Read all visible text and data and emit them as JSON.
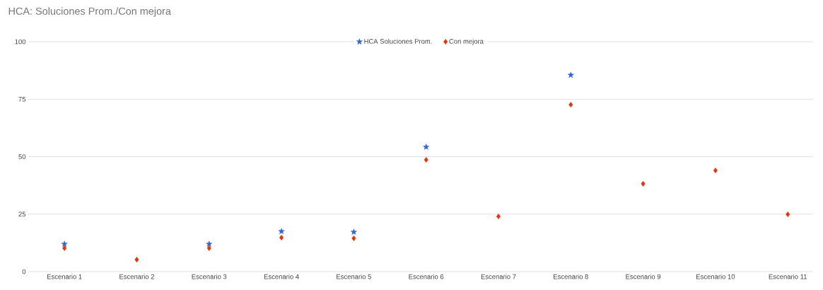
{
  "chart_data": {
    "type": "scatter",
    "title": "HCA: Soluciones Prom./Con mejora",
    "categories": [
      "Escenario 1",
      "Escenario 2",
      "Escenario 3",
      "Escenario 4",
      "Escenario 5",
      "Escenario 6",
      "Escenario 7",
      "Escenario 8",
      "Escenario 9",
      "Escenario 10",
      "Escenario 11"
    ],
    "series": [
      {
        "name": "HCA Soluciones Prom.",
        "color": "#3366cc",
        "marker": "star",
        "values": [
          12,
          null,
          12,
          17.5,
          17.2,
          54.2,
          null,
          85.5,
          null,
          null,
          null
        ]
      },
      {
        "name": "Con mejora",
        "color": "#dc3912",
        "marker": "diamond",
        "values": [
          10.2,
          5.2,
          10.2,
          14.8,
          14.5,
          48.6,
          24,
          72.6,
          38.2,
          44,
          24.9
        ]
      }
    ],
    "ylim": [
      0,
      100
    ],
    "yticks": [
      0,
      25,
      50,
      75,
      100
    ],
    "grid": "y",
    "legend": "top"
  }
}
